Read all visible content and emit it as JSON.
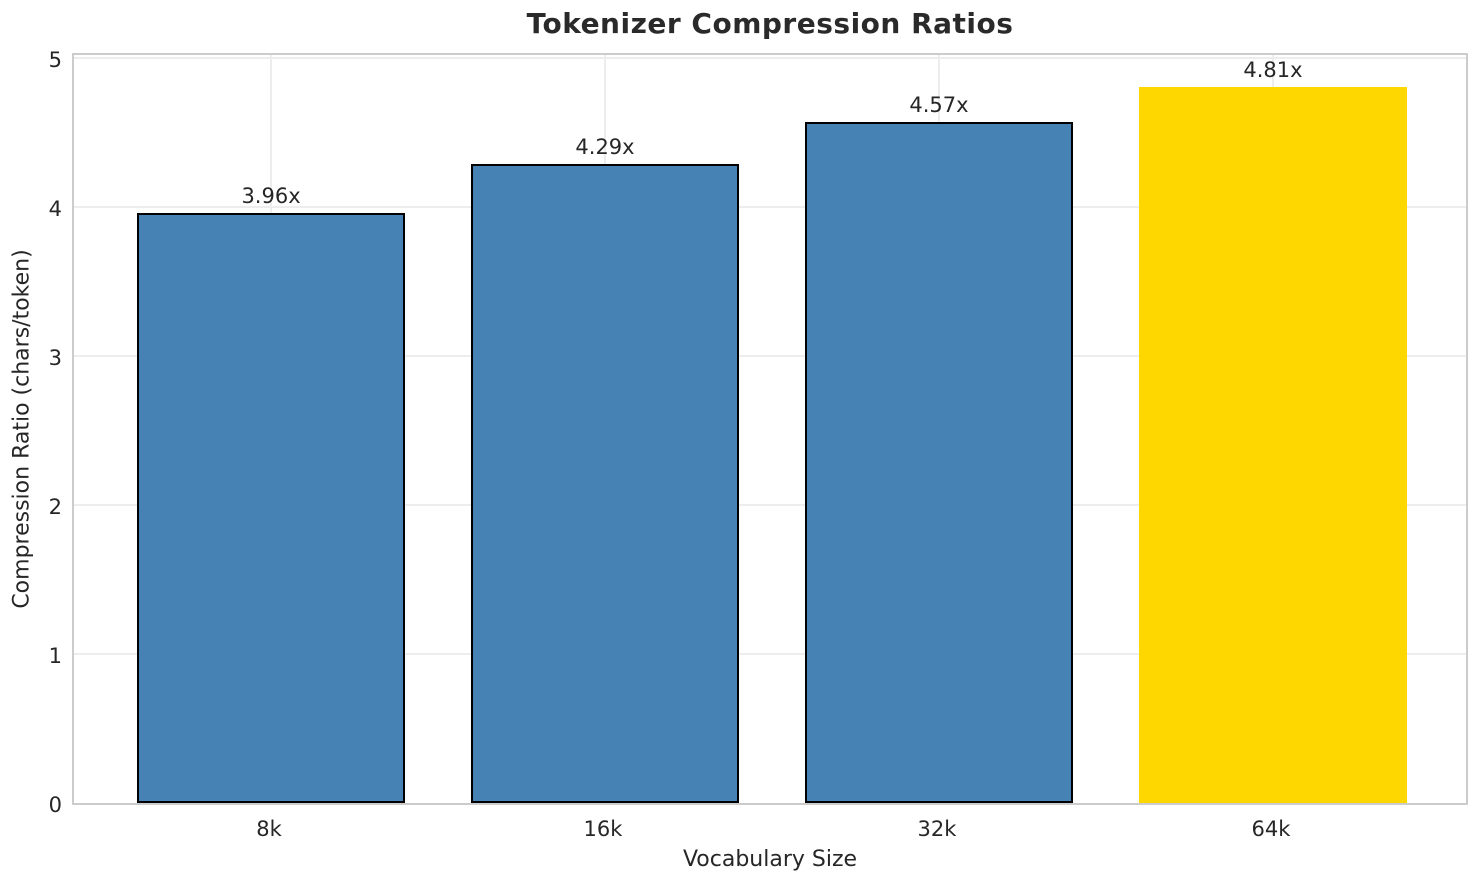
{
  "chart_data": {
    "type": "bar",
    "title": "Tokenizer Compression Ratios",
    "xlabel": "Vocabulary Size",
    "ylabel": "Compression Ratio (chars/token)",
    "categories": [
      "8k",
      "16k",
      "32k",
      "64k"
    ],
    "values": [
      3.96,
      4.29,
      4.57,
      4.81
    ],
    "bar_labels": [
      "3.96x",
      "4.29x",
      "4.57x",
      "4.81x"
    ],
    "bar_colors": [
      "#4682B4",
      "#4682B4",
      "#4682B4",
      "#FFD700"
    ],
    "bar_edge_colors": [
      "#000000",
      "#000000",
      "#000000",
      "none"
    ],
    "base_color": "#4682B4",
    "highlight_color": "#FFD700",
    "ytick_labels": [
      "0",
      "1",
      "2",
      "3",
      "4",
      "5"
    ],
    "ytick_values": [
      0,
      1,
      2,
      3,
      4,
      5
    ],
    "ylim": [
      0,
      5.05
    ],
    "grid": true,
    "legend": "none"
  }
}
